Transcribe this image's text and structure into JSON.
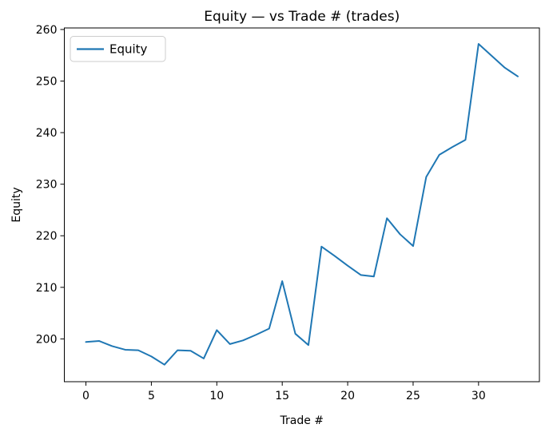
{
  "window": {
    "kind": "matplotlib-figure"
  },
  "chart_data": {
    "type": "line",
    "title": "Equity — vs Trade # (trades)",
    "xlabel": "Trade #",
    "ylabel": "Equity",
    "legend": {
      "entries": [
        "Equity"
      ],
      "position": "upper left"
    },
    "line_color": "#1f77b4",
    "axes_color": "#000000",
    "background_color": "#ffffff",
    "grid": false,
    "x": [
      0,
      1,
      2,
      3,
      4,
      5,
      6,
      7,
      8,
      9,
      10,
      11,
      12,
      13,
      14,
      15,
      16,
      17,
      18,
      19,
      20,
      21,
      22,
      23,
      24,
      25,
      26,
      27,
      28,
      29,
      30,
      31,
      32,
      33
    ],
    "series": [
      {
        "name": "Equity",
        "values": [
          199.4,
          199.6,
          198.6,
          197.9,
          197.8,
          196.6,
          195.0,
          197.8,
          197.7,
          196.2,
          201.7,
          199.0,
          199.7,
          200.8,
          202.0,
          211.2,
          201.0,
          198.8,
          217.9,
          216.1,
          214.2,
          212.4,
          212.1,
          223.4,
          220.3,
          218.0,
          231.4,
          235.7,
          237.2,
          238.6,
          257.2,
          254.9,
          252.6,
          250.9
        ]
      }
    ],
    "xlim": [
      -1.65,
      34.65
    ],
    "ylim": [
      191.7,
      260.3
    ],
    "xticks": [
      0,
      5,
      10,
      15,
      20,
      25,
      30
    ],
    "yticks": [
      200,
      210,
      220,
      230,
      240,
      250,
      260
    ]
  }
}
